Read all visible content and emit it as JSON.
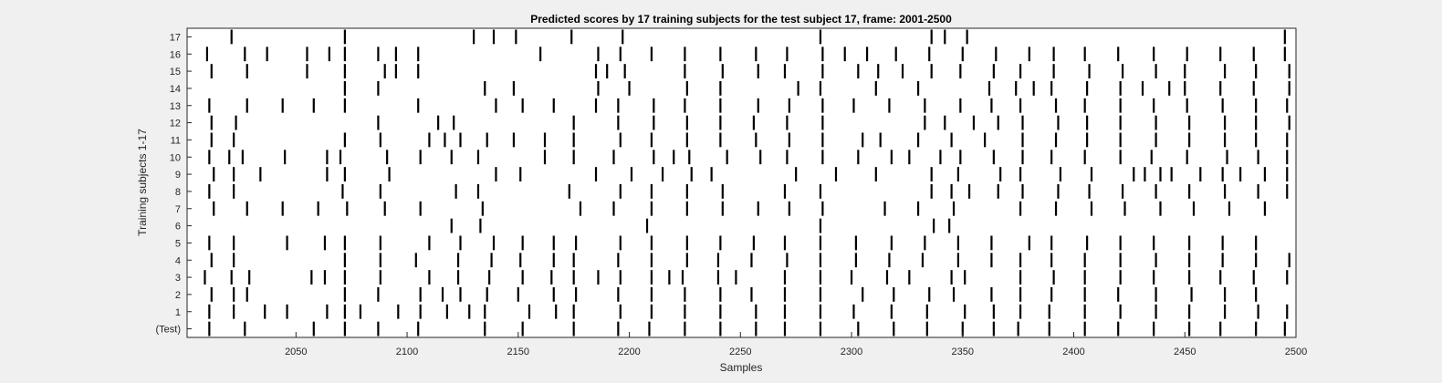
{
  "chart_data": {
    "type": "raster",
    "title": "Predicted scores by 17 training subjects for the test subject 17, frame: 2001-2500",
    "xlabel": "Samples",
    "ylabel": "Training subjects 1-17",
    "xlim": [
      2001,
      2500
    ],
    "xticks": [
      "2050",
      "2100",
      "2150",
      "2200",
      "2250",
      "2300",
      "2350",
      "2400",
      "2450",
      "2500"
    ],
    "yticks": [
      "(Test)",
      "1",
      "2",
      "3",
      "4",
      "5",
      "6",
      "7",
      "8",
      "9",
      "10",
      "11",
      "12",
      "13",
      "14",
      "15",
      "16",
      "17"
    ],
    "grid": false,
    "mark_color": "#000000",
    "background_color": "#ffffff",
    "rows": [
      {
        "label": "(Test)",
        "events": [
          2011,
          2027,
          2058,
          2072,
          2087,
          2105,
          2135,
          2152,
          2175,
          2195,
          2209,
          2225,
          2241,
          2257,
          2270,
          2286,
          2303,
          2319,
          2334,
          2350,
          2364,
          2375,
          2389,
          2405,
          2420,
          2436,
          2452,
          2466,
          2482,
          2495
        ]
      },
      {
        "label": "1",
        "events": [
          2011,
          2022,
          2036,
          2046,
          2064,
          2072,
          2079,
          2096,
          2106,
          2118,
          2128,
          2135,
          2155,
          2167,
          2175,
          2196,
          2210,
          2225,
          2241,
          2257,
          2270,
          2286,
          2301,
          2318,
          2334,
          2351,
          2364,
          2376,
          2389,
          2405,
          2421,
          2437,
          2452,
          2468,
          2483,
          2496
        ]
      },
      {
        "label": "2",
        "events": [
          2012,
          2022,
          2028,
          2072,
          2087,
          2106,
          2116,
          2124,
          2136,
          2150,
          2166,
          2176,
          2195,
          2210,
          2225,
          2241,
          2255,
          2270,
          2286,
          2305,
          2319,
          2335,
          2346,
          2363,
          2376,
          2390,
          2405,
          2420,
          2437,
          2453,
          2468,
          2482
        ]
      },
      {
        "label": "3",
        "events": [
          2009,
          2021,
          2029,
          2057,
          2063,
          2072,
          2088,
          2110,
          2123,
          2137,
          2152,
          2165,
          2175,
          2186,
          2196,
          2210,
          2218,
          2224,
          2240,
          2248,
          2270,
          2286,
          2300,
          2316,
          2326,
          2345,
          2351,
          2376,
          2391,
          2405,
          2421,
          2436,
          2452,
          2466,
          2481,
          2496
        ]
      },
      {
        "label": "4",
        "events": [
          2012,
          2022,
          2072,
          2088,
          2104,
          2123,
          2138,
          2151,
          2166,
          2175,
          2195,
          2210,
          2226,
          2240,
          2255,
          2271,
          2286,
          2302,
          2317,
          2332,
          2348,
          2363,
          2376,
          2390,
          2405,
          2421,
          2437,
          2452,
          2467,
          2482,
          2497
        ]
      },
      {
        "label": "5",
        "events": [
          2011,
          2022,
          2046,
          2063,
          2072,
          2088,
          2110,
          2124,
          2139,
          2152,
          2166,
          2176,
          2196,
          2210,
          2226,
          2241,
          2256,
          2270,
          2286,
          2302,
          2318,
          2333,
          2348,
          2363,
          2380,
          2390,
          2406,
          2421,
          2436,
          2452,
          2467,
          2482
        ]
      },
      {
        "label": "6",
        "events": [
          2120,
          2133,
          2208,
          2286,
          2337,
          2344
        ]
      },
      {
        "label": "7",
        "events": [
          2013,
          2028,
          2044,
          2060,
          2073,
          2090,
          2106,
          2134,
          2178,
          2193,
          2210,
          2226,
          2242,
          2258,
          2272,
          2287,
          2315,
          2330,
          2346,
          2376,
          2392,
          2408,
          2423,
          2439,
          2454,
          2470,
          2486
        ]
      },
      {
        "label": "8",
        "events": [
          2011,
          2022,
          2071,
          2088,
          2122,
          2132,
          2173,
          2196,
          2210,
          2226,
          2242,
          2270,
          2286,
          2336,
          2345,
          2353,
          2366,
          2377,
          2393,
          2407,
          2422,
          2437,
          2452,
          2468,
          2483,
          2496
        ]
      },
      {
        "label": "9",
        "events": [
          2013,
          2022,
          2034,
          2064,
          2072,
          2092,
          2140,
          2151,
          2185,
          2201,
          2215,
          2228,
          2237,
          2275,
          2293,
          2311,
          2336,
          2348,
          2367,
          2376,
          2394,
          2408,
          2427,
          2432,
          2439,
          2444,
          2457,
          2467,
          2475,
          2486,
          2496
        ]
      },
      {
        "label": "10",
        "events": [
          2011,
          2020,
          2026,
          2045,
          2064,
          2070,
          2091,
          2106,
          2120,
          2132,
          2162,
          2175,
          2193,
          2211,
          2220,
          2227,
          2244,
          2259,
          2271,
          2287,
          2303,
          2318,
          2326,
          2340,
          2349,
          2364,
          2377,
          2390,
          2405,
          2421,
          2435,
          2451,
          2469,
          2483,
          2496
        ]
      },
      {
        "label": "11",
        "events": [
          2012,
          2022,
          2072,
          2088,
          2110,
          2117,
          2124,
          2136,
          2148,
          2162,
          2175,
          2196,
          2210,
          2226,
          2241,
          2257,
          2272,
          2287,
          2305,
          2313,
          2330,
          2345,
          2360,
          2377,
          2392,
          2406,
          2421,
          2437,
          2452,
          2468,
          2482,
          2496
        ]
      },
      {
        "label": "12",
        "events": [
          2012,
          2023,
          2087,
          2114,
          2121,
          2175,
          2195,
          2211,
          2226,
          2241,
          2256,
          2271,
          2287,
          2333,
          2342,
          2355,
          2366,
          2377,
          2393,
          2406,
          2421,
          2437,
          2452,
          2468,
          2482,
          2497
        ]
      },
      {
        "label": "13",
        "events": [
          2011,
          2028,
          2044,
          2058,
          2072,
          2105,
          2140,
          2152,
          2166,
          2185,
          2195,
          2211,
          2225,
          2241,
          2258,
          2272,
          2287,
          2301,
          2317,
          2333,
          2349,
          2363,
          2376,
          2392,
          2405,
          2421,
          2436,
          2451,
          2467,
          2482,
          2496
        ]
      },
      {
        "label": "14",
        "events": [
          2072,
          2087,
          2135,
          2148,
          2186,
          2200,
          2226,
          2241,
          2276,
          2286,
          2311,
          2330,
          2362,
          2374,
          2382,
          2390,
          2406,
          2421,
          2431,
          2443,
          2450,
          2466,
          2481,
          2497
        ]
      },
      {
        "label": "15",
        "events": [
          2012,
          2028,
          2055,
          2072,
          2090,
          2095,
          2105,
          2185,
          2190,
          2198,
          2225,
          2242,
          2258,
          2270,
          2287,
          2303,
          2312,
          2323,
          2336,
          2349,
          2364,
          2376,
          2391,
          2407,
          2422,
          2437,
          2450,
          2468,
          2482,
          2497
        ]
      },
      {
        "label": "16",
        "events": [
          2010,
          2027,
          2037,
          2055,
          2065,
          2072,
          2087,
          2095,
          2105,
          2160,
          2186,
          2196,
          2210,
          2225,
          2241,
          2257,
          2271,
          2287,
          2297,
          2307,
          2320,
          2335,
          2350,
          2365,
          2380,
          2391,
          2405,
          2420,
          2436,
          2451,
          2466,
          2481,
          2495
        ]
      },
      {
        "label": "17",
        "events": [
          2021,
          2072,
          2130,
          2139,
          2149,
          2174,
          2197,
          2286,
          2336,
          2342,
          2352,
          2495
        ]
      }
    ]
  }
}
